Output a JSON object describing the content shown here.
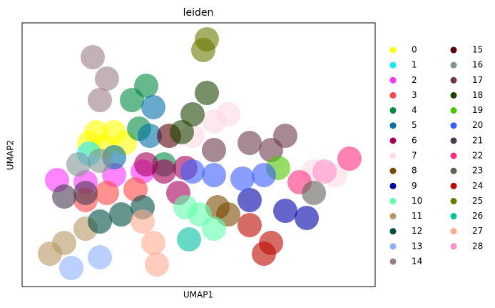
{
  "chart_data": {
    "type": "scatter",
    "title": "leiden",
    "x_label": "UMAP1",
    "y_label": "UMAP2",
    "xlim": [
      0,
      495
    ],
    "ylim": [
      0,
      369
    ],
    "legend": "right",
    "legend_columns": 2,
    "series": [
      {
        "name": "0",
        "color": "#FFFF00",
        "x": [
          104,
          129,
          114,
          144,
          94
        ],
        "y": [
          216,
          216,
          196,
          201,
          201
        ]
      },
      {
        "name": "1",
        "color": "#1CE6FF",
        "x": [
          94
        ],
        "y": [
          186
        ]
      },
      {
        "name": "2",
        "color": "#FF34FF",
        "x": [
          49,
          89,
          129,
          169
        ],
        "y": [
          149,
          146,
          156,
          161
        ]
      },
      {
        "name": "3",
        "color": "#FF4A46",
        "x": [
          119,
          159,
          89
        ],
        "y": [
          131,
          136,
          121
        ]
      },
      {
        "name": "4",
        "color": "#008941",
        "x": [
          154,
          164,
          174,
          199
        ],
        "y": [
          261,
          221,
          281,
          171
        ]
      },
      {
        "name": "5",
        "color": "#006FA6",
        "x": [
          184,
          129,
          179
        ],
        "y": [
          251,
          181,
          211
        ]
      },
      {
        "name": "6",
        "color": "#A30059",
        "x": [
          199,
          229,
          174,
          219
        ],
        "y": [
          161,
          166,
          171,
          131
        ]
      },
      {
        "name": "7",
        "color": "#FFDBE5",
        "x": [
          269,
          289,
          239,
          409,
          439
        ],
        "y": [
          231,
          241,
          211,
          161,
          156
        ]
      },
      {
        "name": "8",
        "color": "#7A4900",
        "x": [
          289,
          274
        ],
        "y": [
          101,
          111
        ]
      },
      {
        "name": "9",
        "color": "#0000A6",
        "x": [
          319,
          369,
          399
        ],
        "y": [
          121,
          106,
          96
        ]
      },
      {
        "name": "10",
        "color": "#63FFAC",
        "x": [
          249,
          269,
          229
        ],
        "y": [
          101,
          81,
          111
        ]
      },
      {
        "name": "11",
        "color": "#B79762",
        "x": [
          59,
          89,
          39
        ],
        "y": [
          61,
          81,
          46
        ]
      },
      {
        "name": "12",
        "color": "#004D43",
        "x": [
          139,
          169,
          109
        ],
        "y": [
          101,
          111,
          91
        ]
      },
      {
        "name": "13",
        "color": "#8FB0FF",
        "x": [
          69,
          109
        ],
        "y": [
          26,
          41
        ]
      },
      {
        "name": "14",
        "color": "#997D87",
        "x": [
          119,
          99,
          109
        ],
        "y": [
          291,
          321,
          261
        ]
      },
      {
        "name": "15",
        "color": "#5A0007",
        "x": [
          206
        ],
        "y": [
          211
        ]
      },
      {
        "name": "16",
        "color": "#809693",
        "x": [
          79,
          109
        ],
        "y": [
          171,
          176
        ]
      },
      {
        "name": "17",
        "color": "#6A3A4C",
        "x": [
          319,
          369,
          269,
          349
        ],
        "y": [
          201,
          211,
          191,
          191
        ]
      },
      {
        "name": "18",
        "color": "#1B4400",
        "x": [
          239,
          259,
          224
        ],
        "y": [
          241,
          271,
          216
        ]
      },
      {
        "name": "19",
        "color": "#4FC601",
        "x": [
          359
        ],
        "y": [
          166
        ]
      },
      {
        "name": "20",
        "color": "#3B5DFF",
        "x": [
          269,
          309,
          339,
          239
        ],
        "y": [
          156,
          151,
          156,
          161
        ]
      },
      {
        "name": "21",
        "color": "#4A3B53",
        "x": [
          59,
          89
        ],
        "y": [
          126,
          131
        ]
      },
      {
        "name": "22",
        "color": "#FF2F80",
        "x": [
          459,
          389
        ],
        "y": [
          179,
          146
        ]
      },
      {
        "name": "23",
        "color": "#61615A",
        "x": [
          409
        ],
        "y": [
          131
        ]
      },
      {
        "name": "24",
        "color": "#BA0900",
        "x": [
          349,
          319,
          339
        ],
        "y": [
          61,
          86,
          46
        ]
      },
      {
        "name": "25",
        "color": "#6B7900",
        "x": [
          254,
          259
        ],
        "y": [
          331,
          346
        ]
      },
      {
        "name": "26",
        "color": "#00C2A0",
        "x": [
          234
        ],
        "y": [
          66
        ]
      },
      {
        "name": "27",
        "color": "#FFAA92",
        "x": [
          184,
          189,
          169
        ],
        "y": [
          61,
          31,
          91
        ]
      },
      {
        "name": "28",
        "color": "#FF90C9",
        "x": [
          424
        ],
        "y": [
          161
        ]
      }
    ]
  }
}
